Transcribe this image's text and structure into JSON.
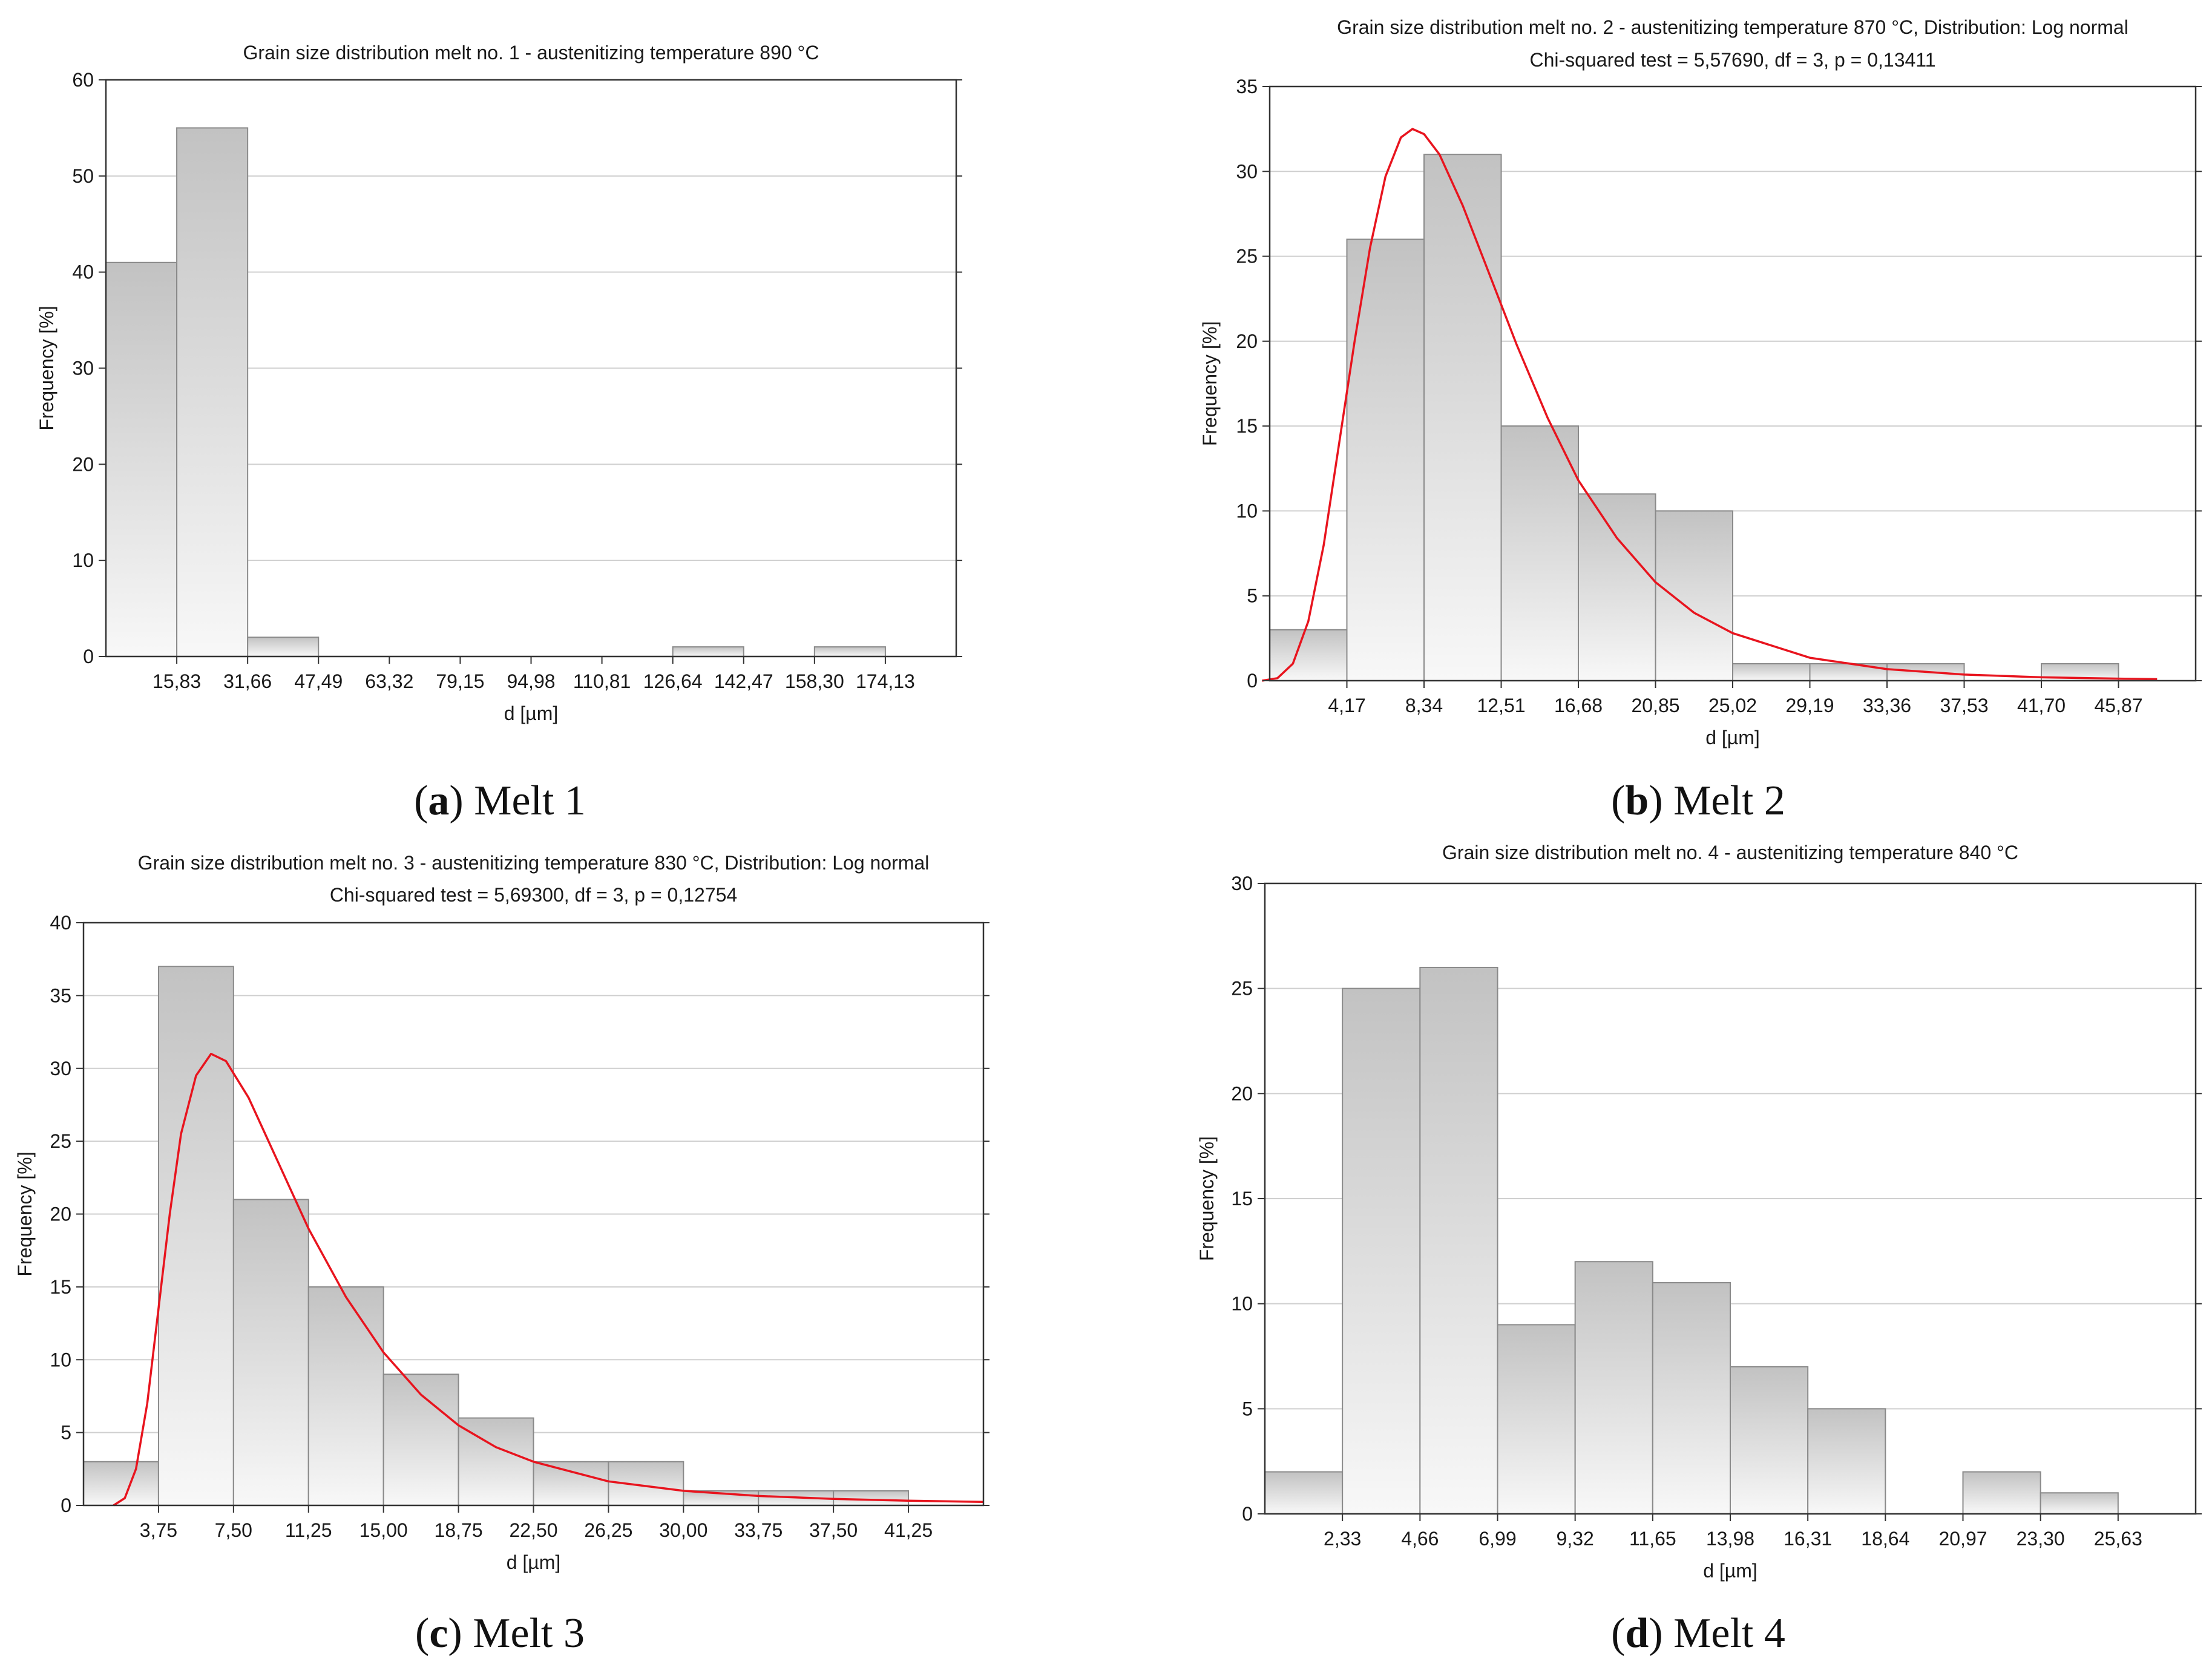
{
  "chart_data": [
    {
      "type": "bar",
      "title": "Grain size distribution melt no. 1 - austenitizing temperature 890 °C",
      "subtitle": "",
      "xlabel": "d [µm]",
      "ylabel": "Frequency [%]",
      "ylim": [
        0,
        60
      ],
      "yticks": [
        "0",
        "10",
        "20",
        "30",
        "40",
        "50",
        "60"
      ],
      "xticks": [
        "15,83",
        "31,66",
        "47,49",
        "63,32",
        "79,15",
        "94,98",
        "110,81",
        "126,64",
        "142,47",
        "158,30",
        "174,13"
      ],
      "values": [
        41,
        55,
        2,
        0,
        0,
        0,
        0,
        0,
        1,
        0,
        1,
        0
      ],
      "fit_curve": null,
      "grid": true,
      "caption_letter": "a",
      "caption_text": "Melt 1"
    },
    {
      "type": "bar",
      "title": "Grain size distribution melt no. 2 - austenitizing temperature 870 °C, Distribution: Log normal",
      "subtitle": "Chi-squared test = 5,57690, df = 3, p = 0,13411",
      "xlabel": "d [µm]",
      "ylabel": "Frequency [%]",
      "ylim": [
        0,
        35
      ],
      "yticks": [
        "0",
        "5",
        "10",
        "15",
        "20",
        "25",
        "30",
        "35"
      ],
      "xticks": [
        "4,17",
        "8,34",
        "12,51",
        "16,68",
        "20,85",
        "25,02",
        "29,19",
        "33,36",
        "37,53",
        "41,70",
        "45,87"
      ],
      "values": [
        3,
        26,
        31,
        15,
        11,
        10,
        1,
        1,
        1,
        0,
        1,
        0
      ],
      "fit_curve": {
        "distribution": "Log normal",
        "bin_start": -0.1,
        "bin_end": 11.5,
        "points": [
          [
            -0.1,
            0
          ],
          [
            0.1,
            0.15
          ],
          [
            0.3,
            1.0
          ],
          [
            0.5,
            3.5
          ],
          [
            0.7,
            8.0
          ],
          [
            0.9,
            14.0
          ],
          [
            1.1,
            20.0
          ],
          [
            1.3,
            25.5
          ],
          [
            1.5,
            29.7
          ],
          [
            1.7,
            32.0
          ],
          [
            1.85,
            32.5
          ],
          [
            2.0,
            32.2
          ],
          [
            2.2,
            31.0
          ],
          [
            2.5,
            28.0
          ],
          [
            2.8,
            24.5
          ],
          [
            3.2,
            19.8
          ],
          [
            3.6,
            15.5
          ],
          [
            4.0,
            11.8
          ],
          [
            4.5,
            8.4
          ],
          [
            5.0,
            5.8
          ],
          [
            5.5,
            4.0
          ],
          [
            6.0,
            2.8
          ],
          [
            7.0,
            1.35
          ],
          [
            8.0,
            0.68
          ],
          [
            9.0,
            0.36
          ],
          [
            10.0,
            0.2
          ],
          [
            11.0,
            0.12
          ],
          [
            11.5,
            0.09
          ]
        ]
      },
      "grid": true,
      "caption_letter": "b",
      "caption_text": "Melt 2"
    },
    {
      "type": "bar",
      "title": "Grain size distribution melt no. 3 - austenitizing temperature 830 °C, Distribution: Log normal",
      "subtitle": "Chi-squared test = 5,69300, df = 3, p = 0,12754",
      "xlabel": "d [µm]",
      "ylabel": "Frequency [%]",
      "ylim": [
        0,
        40
      ],
      "yticks": [
        "0",
        "5",
        "10",
        "15",
        "20",
        "25",
        "30",
        "35",
        "40"
      ],
      "xticks": [
        "3,75",
        "7,50",
        "11,25",
        "15,00",
        "18,75",
        "22,50",
        "26,25",
        "30,00",
        "33,75",
        "37,50",
        "41,25"
      ],
      "values": [
        3,
        37,
        21,
        15,
        9,
        6,
        3,
        3,
        1,
        1,
        1,
        0
      ],
      "fit_curve": {
        "distribution": "Log normal",
        "bin_start": 0.0,
        "bin_end": 12.0,
        "points": [
          [
            0.4,
            0
          ],
          [
            0.55,
            0.5
          ],
          [
            0.7,
            2.5
          ],
          [
            0.85,
            7.0
          ],
          [
            1.0,
            13.5
          ],
          [
            1.15,
            20.0
          ],
          [
            1.3,
            25.5
          ],
          [
            1.5,
            29.5
          ],
          [
            1.7,
            31.0
          ],
          [
            1.9,
            30.5
          ],
          [
            2.2,
            28.0
          ],
          [
            2.6,
            23.5
          ],
          [
            3.0,
            19.0
          ],
          [
            3.5,
            14.3
          ],
          [
            4.0,
            10.5
          ],
          [
            4.5,
            7.6
          ],
          [
            5.0,
            5.5
          ],
          [
            5.5,
            4.0
          ],
          [
            6.0,
            3.0
          ],
          [
            7.0,
            1.65
          ],
          [
            8.0,
            1.0
          ],
          [
            9.0,
            0.65
          ],
          [
            10.0,
            0.45
          ],
          [
            11.0,
            0.32
          ],
          [
            12.0,
            0.24
          ]
        ]
      },
      "grid": true,
      "caption_letter": "c",
      "caption_text": "Melt 3"
    },
    {
      "type": "bar",
      "title": "Grain size distribution melt no. 4 - austenitizing temperature 840 °C",
      "subtitle": "",
      "xlabel": "d [µm]",
      "ylabel": "Frequency [%]",
      "ylim": [
        0,
        30
      ],
      "yticks": [
        "0",
        "5",
        "10",
        "15",
        "20",
        "25",
        "30"
      ],
      "xticks": [
        "2,33",
        "4,66",
        "6,99",
        "9,32",
        "11,65",
        "13,98",
        "16,31",
        "18,64",
        "20,97",
        "23,30",
        "25,63"
      ],
      "values": [
        2,
        25,
        26,
        9,
        12,
        11,
        7,
        5,
        0,
        2,
        1,
        0
      ],
      "fit_curve": null,
      "grid": true,
      "caption_letter": "d",
      "caption_text": "Melt 4"
    }
  ],
  "colors": {
    "bar_top": "#c2c2c2",
    "bar_bottom": "#f8f8f8",
    "bar_stroke": "#8a8a8a",
    "grid": "#cfcfcf",
    "frame": "#333333",
    "fit_curve": "#e8141e"
  }
}
